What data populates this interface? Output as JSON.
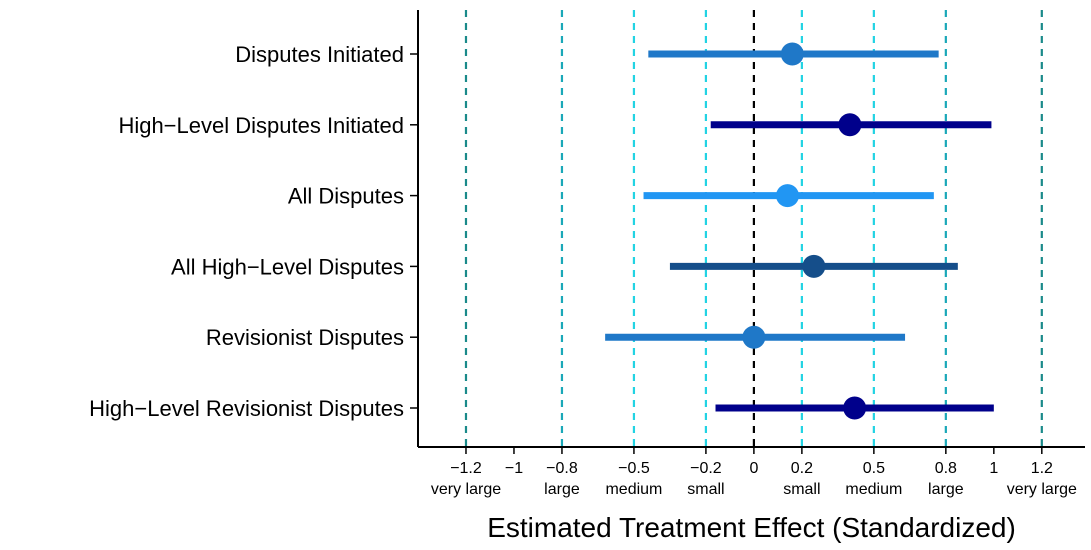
{
  "chart_data": {
    "type": "scatter",
    "orientation": "horizontal",
    "xlabel": "Estimated Treatment Effect (Standardized)",
    "xlim": [
      -1.4,
      1.38
    ],
    "ticks": [
      {
        "value": -1.2,
        "label": "−1.2",
        "sublabel": "very large"
      },
      {
        "value": -1.0,
        "label": "−1",
        "sublabel": ""
      },
      {
        "value": -0.8,
        "label": "−0.8",
        "sublabel": "large"
      },
      {
        "value": -0.5,
        "label": "−0.5",
        "sublabel": "medium"
      },
      {
        "value": -0.2,
        "label": "−0.2",
        "sublabel": "small"
      },
      {
        "value": 0.0,
        "label": "0",
        "sublabel": ""
      },
      {
        "value": 0.2,
        "label": "0.2",
        "sublabel": "small"
      },
      {
        "value": 0.5,
        "label": "0.5",
        "sublabel": "medium"
      },
      {
        "value": 0.8,
        "label": "0.8",
        "sublabel": "large"
      },
      {
        "value": 1.0,
        "label": "1",
        "sublabel": ""
      },
      {
        "value": 1.2,
        "label": "1.2",
        "sublabel": "very large"
      }
    ],
    "reference_lines": [
      {
        "value": -1.2,
        "color": "#1a8a8a"
      },
      {
        "value": -0.8,
        "color": "#1aa8b8"
      },
      {
        "value": -0.5,
        "color": "#22d3e3"
      },
      {
        "value": -0.2,
        "color": "#22d3e3"
      },
      {
        "value": 0.0,
        "color": "#000000"
      },
      {
        "value": 0.2,
        "color": "#22d3e3"
      },
      {
        "value": 0.5,
        "color": "#22d3e3"
      },
      {
        "value": 0.8,
        "color": "#1aa8b8"
      },
      {
        "value": 1.2,
        "color": "#1a8a8a"
      }
    ],
    "grid": false,
    "series": [
      {
        "label": "Disputes Initiated",
        "estimate": 0.16,
        "lower": -0.44,
        "upper": 0.77,
        "color": "#1f78c8"
      },
      {
        "label": "High−Level Disputes Initiated",
        "estimate": 0.4,
        "lower": -0.18,
        "upper": 0.99,
        "color": "#00008b"
      },
      {
        "label": "All Disputes",
        "estimate": 0.14,
        "lower": -0.46,
        "upper": 0.75,
        "color": "#2196f3"
      },
      {
        "label": "All High−Level Disputes",
        "estimate": 0.25,
        "lower": -0.35,
        "upper": 0.85,
        "color": "#154e8a"
      },
      {
        "label": "Revisionist Disputes",
        "estimate": 0.0,
        "lower": -0.62,
        "upper": 0.63,
        "color": "#1f78c8"
      },
      {
        "label": "High−Level Revisionist Disputes",
        "estimate": 0.42,
        "lower": -0.16,
        "upper": 1.0,
        "color": "#00008b"
      }
    ]
  }
}
